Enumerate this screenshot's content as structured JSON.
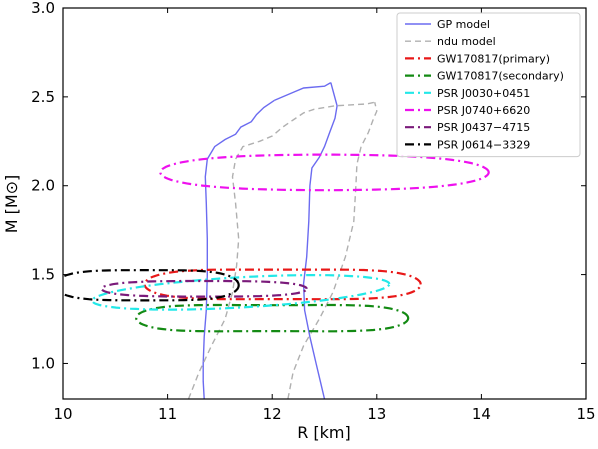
{
  "chart_data": {
    "type": "line",
    "title": "",
    "xlabel": "R [km]",
    "ylabel": "M [M⊙]",
    "xlim": [
      10,
      15
    ],
    "ylim": [
      0.8,
      3.0
    ],
    "xticks": [
      "10",
      "11",
      "12",
      "13",
      "14",
      "15"
    ],
    "yticks": [
      "1.0",
      "1.5",
      "2.0",
      "2.5",
      "3.0"
    ],
    "xtick_values": [
      10,
      11,
      12,
      13,
      14,
      15
    ],
    "ytick_values": [
      1.0,
      1.5,
      2.0,
      2.5,
      3.0
    ],
    "grid": false,
    "legend_position": "top-right",
    "series": [
      {
        "name": "GP model",
        "kind": "line",
        "style": "solid",
        "color": "#6b6bf0",
        "paths": [
          [
            [
              11.35,
              0.8
            ],
            [
              11.34,
              0.9
            ],
            [
              11.34,
              1.0
            ],
            [
              11.35,
              1.15
            ],
            [
              11.37,
              1.3
            ],
            [
              11.38,
              1.5
            ],
            [
              11.38,
              1.7
            ],
            [
              11.37,
              1.9
            ],
            [
              11.36,
              2.05
            ],
            [
              11.38,
              2.15
            ],
            [
              11.45,
              2.22
            ],
            [
              11.55,
              2.26
            ],
            [
              11.65,
              2.29
            ],
            [
              11.7,
              2.33
            ],
            [
              11.8,
              2.36
            ],
            [
              11.85,
              2.4
            ],
            [
              11.92,
              2.44
            ],
            [
              12.02,
              2.48
            ]
          ],
          [
            [
              12.5,
              0.8
            ],
            [
              12.46,
              0.9
            ],
            [
              12.42,
              1.0
            ],
            [
              12.36,
              1.15
            ],
            [
              12.31,
              1.3
            ],
            [
              12.3,
              1.45
            ],
            [
              12.33,
              1.6
            ],
            [
              12.35,
              1.8
            ],
            [
              12.36,
              2.0
            ],
            [
              12.38,
              2.1
            ],
            [
              12.45,
              2.16
            ],
            [
              12.5,
              2.22
            ],
            [
              12.55,
              2.3
            ],
            [
              12.6,
              2.38
            ],
            [
              12.62,
              2.45
            ],
            [
              12.56,
              2.58
            ]
          ],
          [
            [
              12.02,
              2.48
            ],
            [
              12.22,
              2.53
            ],
            [
              12.3,
              2.55
            ],
            [
              12.5,
              2.56
            ],
            [
              12.56,
              2.58
            ]
          ]
        ]
      },
      {
        "name": "ndu model",
        "kind": "line",
        "style": "dashed",
        "color": "#b0b0b0",
        "paths": [
          [
            [
              11.2,
              0.8
            ],
            [
              11.3,
              0.95
            ],
            [
              11.42,
              1.1
            ],
            [
              11.55,
              1.25
            ],
            [
              11.62,
              1.4
            ],
            [
              11.66,
              1.55
            ],
            [
              11.68,
              1.7
            ],
            [
              11.65,
              1.9
            ],
            [
              11.62,
              2.05
            ],
            [
              11.65,
              2.15
            ],
            [
              11.72,
              2.22
            ],
            [
              11.88,
              2.25
            ],
            [
              12.0,
              2.28
            ],
            [
              12.1,
              2.33
            ],
            [
              12.2,
              2.37
            ],
            [
              12.3,
              2.41
            ],
            [
              12.4,
              2.43
            ],
            [
              12.6,
              2.45
            ],
            [
              12.9,
              2.46
            ],
            [
              12.98,
              2.47
            ]
          ],
          [
            [
              12.15,
              0.8
            ],
            [
              12.2,
              0.95
            ],
            [
              12.3,
              1.1
            ],
            [
              12.45,
              1.25
            ],
            [
              12.58,
              1.4
            ],
            [
              12.7,
              1.6
            ],
            [
              12.78,
              1.8
            ],
            [
              12.8,
              2.0
            ],
            [
              12.81,
              2.12
            ],
            [
              12.85,
              2.22
            ],
            [
              12.92,
              2.3
            ],
            [
              12.97,
              2.38
            ],
            [
              13.0,
              2.42
            ],
            [
              12.98,
              2.47
            ]
          ]
        ]
      },
      {
        "name": "GW170817(primary)",
        "kind": "ellipse",
        "style": "dashdot",
        "color": "#e81818",
        "cx": 12.1,
        "cy": 1.445,
        "rx": 1.32,
        "ry": 0.095,
        "wobble": 0.012
      },
      {
        "name": "GW170817(secondary)",
        "kind": "ellipse",
        "style": "dashdot",
        "color": "#138a13",
        "cx": 12.0,
        "cy": 1.255,
        "rx": 1.3,
        "ry": 0.085,
        "wobble": 0.012
      },
      {
        "name": "PSR J0030+0451",
        "kind": "ellipse",
        "style": "dashdot",
        "color": "#22e8e8",
        "cx": 11.7,
        "cy": 1.4,
        "rx": 1.42,
        "ry": 0.085,
        "tilt": 0.24
      },
      {
        "name": "PSR J0740+6620",
        "kind": "ellipse",
        "style": "dashdot",
        "color": "#ee10ee",
        "cx": 12.5,
        "cy": 2.075,
        "rx": 1.57,
        "ry": 0.105,
        "wobble": 0.005
      },
      {
        "name": "PSR J0437−4715",
        "kind": "ellipse",
        "style": "dashdot",
        "color": "#7a1a7a",
        "cx": 11.35,
        "cy": 1.42,
        "rx": 0.98,
        "ry": 0.048,
        "wobble": 0.004
      },
      {
        "name": "PSR J0614−3329",
        "kind": "ellipse",
        "style": "dashdot",
        "color": "#000000",
        "cx": 10.8,
        "cy": 1.44,
        "rx": 0.88,
        "ry": 0.095,
        "wobble": 0.01
      }
    ]
  }
}
